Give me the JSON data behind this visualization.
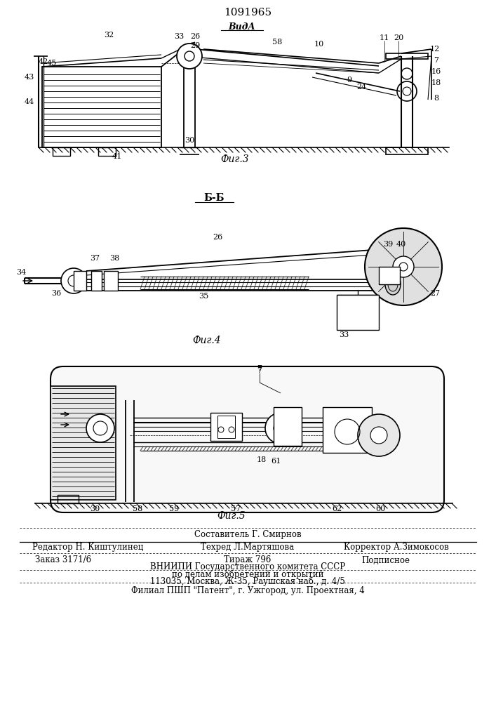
{
  "patent_number": "1091965",
  "background_color": "#ffffff",
  "fig3_label": "Фиг.3",
  "fig4_label": "Фиг.4",
  "fig5_label": "Фиг.5",
  "view_label": "ВидА",
  "section_label": "Б-Б",
  "footer_top_center": "Составитель Г. Смирнов",
  "footer_line1_left": "Редактор Н. Киштулинец",
  "footer_line1_center": "Техред Л.Мартяшова",
  "footer_line1_right": "Корректор А.Зимокосов",
  "footer_line2_left": "Заказ 3171/6",
  "footer_line2_center": "Тираж 796",
  "footer_line2_right": "Подписное",
  "footer_line3": "ВНИИПИ Государственного комитета СССР",
  "footer_line4": "по делам изобретений и открытий",
  "footer_line5": "113035, Москва, Ж-35, Раушская наб., д. 4/5",
  "footer_last": "Филиал ПШП \"Патент\", г. Ужгород, ул. Проектная, 4",
  "text_color": "#000000",
  "line_color": "#000000"
}
